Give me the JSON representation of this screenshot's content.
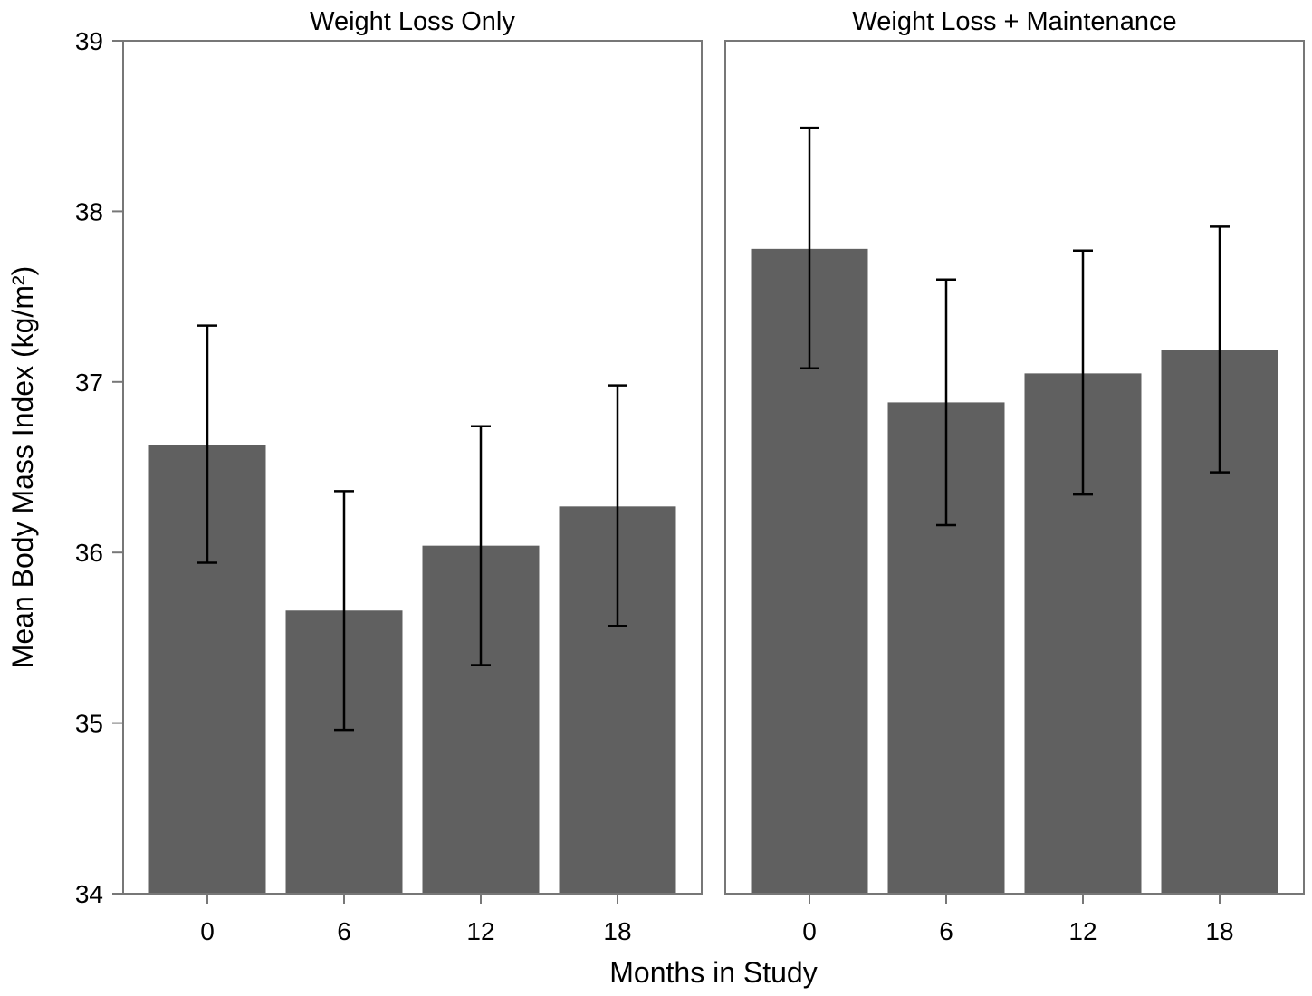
{
  "chart_data": {
    "type": "bar",
    "xlabel": "Months in Study",
    "ylabel": "Mean Body Mass Index (kg/m²)",
    "ylim": [
      34,
      39
    ],
    "yticks": [
      34,
      35,
      36,
      37,
      38,
      39
    ],
    "categories": [
      "0",
      "6",
      "12",
      "18"
    ],
    "grid": false,
    "legend": "none",
    "colors": {
      "bar": "#606060",
      "frame": "#777777",
      "error": "#000000"
    },
    "panels": [
      {
        "title": "Weight Loss Only",
        "values": [
          36.63,
          35.66,
          36.04,
          36.27
        ],
        "error_low": [
          35.94,
          34.96,
          35.34,
          35.57
        ],
        "error_high": [
          37.33,
          36.36,
          36.74,
          36.98
        ]
      },
      {
        "title": "Weight Loss + Maintenance",
        "values": [
          37.78,
          36.88,
          37.05,
          37.19
        ],
        "error_low": [
          37.08,
          36.16,
          36.34,
          36.47
        ],
        "error_high": [
          38.49,
          37.6,
          37.77,
          37.91
        ]
      }
    ]
  }
}
